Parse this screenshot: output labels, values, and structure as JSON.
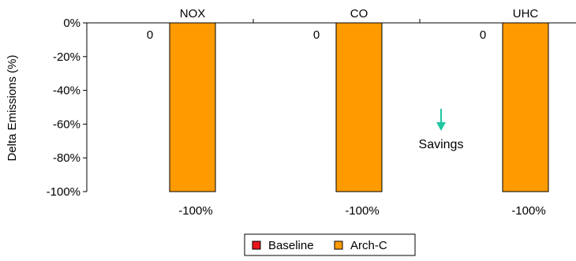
{
  "chart_data": {
    "type": "bar",
    "categories": [
      "NOX",
      "CO",
      "UHC"
    ],
    "series": [
      {
        "name": "Baseline",
        "values": [
          0,
          0,
          0
        ],
        "color": "#e8141b",
        "value_labels": [
          "0",
          "0",
          "0"
        ]
      },
      {
        "name": "Arch-C",
        "values": [
          -100,
          -100,
          -100
        ],
        "color": "#ff9b00",
        "value_labels": [
          "-100%",
          "-100%",
          "-100%"
        ]
      }
    ],
    "ylabel": "Delta Emissions (%)",
    "ylim": [
      -100,
      0
    ],
    "yticks": [
      0,
      -20,
      -40,
      -60,
      -80,
      -100
    ],
    "ytick_labels": [
      "0%",
      "-20%",
      "-40%",
      "-60%",
      "-80%",
      "-100%"
    ],
    "grid": false,
    "legend_position": "bottom",
    "annotation": {
      "text": "Savings",
      "color": "#1fc7a0",
      "arrow": "down"
    }
  }
}
